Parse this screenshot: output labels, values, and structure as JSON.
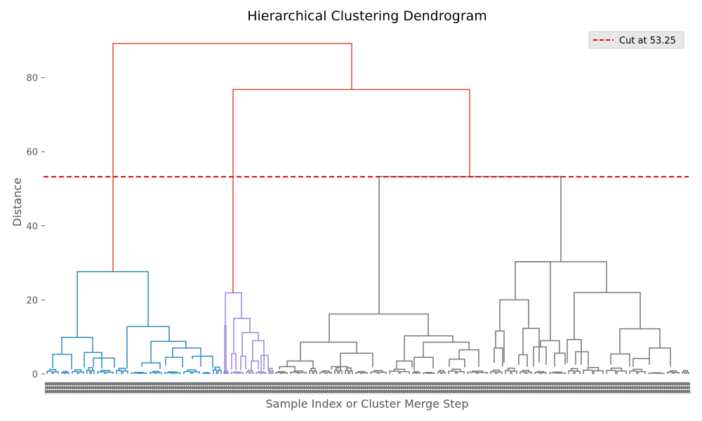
{
  "chart_data": {
    "type": "dendrogram",
    "title": "Hierarchical Clustering Dendrogram",
    "xlabel": "Sample Index or Cluster Merge Step",
    "ylabel": "Distance",
    "ylim": [
      0,
      90
    ],
    "yticks": [
      0,
      20,
      40,
      60,
      80
    ],
    "cut": {
      "value": 53.25,
      "label": "Cut at 53.25",
      "color": "#e00000"
    },
    "legend_position": "top-right",
    "grid": false,
    "clusters": [
      {
        "name": "cluster-1",
        "color": "#2b8cbe"
      },
      {
        "name": "cluster-2",
        "color": "#9b86d6"
      },
      {
        "name": "cluster-3",
        "color": "#777777"
      }
    ],
    "above_threshold_color": "#e24a33",
    "major_merges": [
      {
        "height": 89.2,
        "joins": [
          "cluster-1",
          "rest"
        ]
      },
      {
        "height": 76.8,
        "joins": [
          "cluster-2",
          "cluster-3"
        ]
      },
      {
        "height": 53.3,
        "joins": [
          "cluster-3a",
          "cluster-3b"
        ]
      },
      {
        "height": 30.3,
        "joins": [
          "cluster-3b-left",
          "cluster-3b-right"
        ]
      },
      {
        "height": 27.6,
        "joins": [
          "cluster-1-left",
          "cluster-1-right"
        ]
      },
      {
        "height": 21.9,
        "joins": [
          "cluster-2-root"
        ]
      },
      {
        "height": 16.2,
        "joins": [
          "cluster-3a-left",
          "cluster-3a-right"
        ]
      }
    ]
  }
}
